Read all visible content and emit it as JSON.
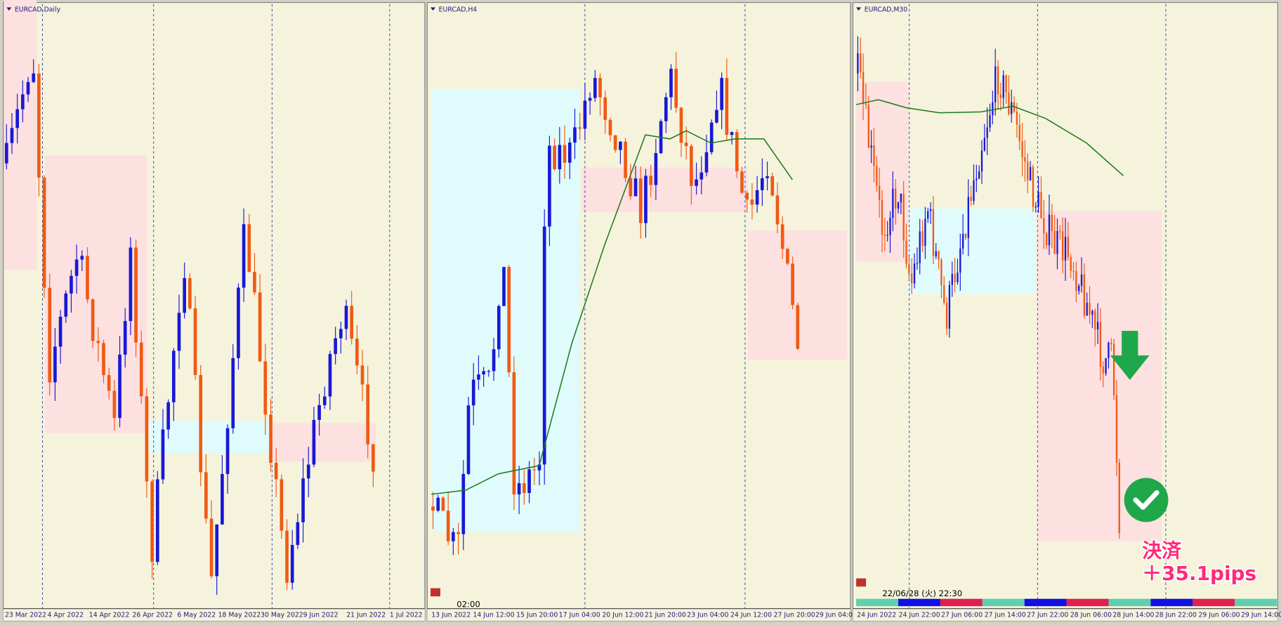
{
  "panels": [
    {
      "title": "EURCAD,Daily",
      "x_labels": [
        "23 Mar 2022",
        "4 Apr 2022",
        "14 Apr 2022",
        "26 Apr 2022",
        "6 May 2022",
        "18 May 2022",
        "30 May 2022",
        "9 Jun 2022",
        "21 Jun 2022",
        "1 Jul 2022"
      ]
    },
    {
      "title": "EURCAD,H4",
      "x_labels": [
        "13 Jun 2022",
        "14 Jun 12:00",
        "15 Jun 20:00",
        "17 Jun 04:00",
        "20 Jun 12:00",
        "21 Jun 20:00",
        "23 Jun 04:00",
        "24 Jun 12:00",
        "27 Jun 20:00",
        "29 Jun 04:00"
      ],
      "time_label": "02:00"
    },
    {
      "title": "EURCAD,M30",
      "x_labels": [
        "24 Jun 2022",
        "24 Jun 22:00",
        "27 Jun 06:00",
        "27 Jun 14:00",
        "27 Jun 22:00",
        "28 Jun 06:00",
        "28 Jun 14:00",
        "28 Jun 22:00",
        "29 Jun 06:00",
        "29 Jun 14:00"
      ],
      "timestamp": "22/06/28 (火) 22:30"
    }
  ],
  "annotation": {
    "line1": "決済",
    "line2": "＋35.1pips"
  }
}
